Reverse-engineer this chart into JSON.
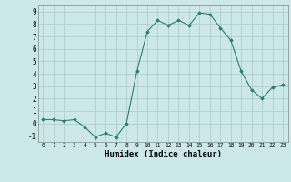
{
  "x": [
    0,
    1,
    2,
    3,
    4,
    5,
    6,
    7,
    8,
    9,
    10,
    11,
    12,
    13,
    14,
    15,
    16,
    17,
    18,
    19,
    20,
    21,
    22,
    23
  ],
  "y": [
    0.3,
    0.3,
    0.2,
    0.3,
    -0.3,
    -1.1,
    -0.8,
    -1.1,
    0.0,
    4.2,
    7.4,
    8.3,
    7.9,
    8.3,
    7.9,
    8.9,
    8.8,
    7.7,
    6.7,
    4.2,
    2.7,
    2.0,
    2.9,
    3.1
  ],
  "xlabel": "Humidex (Indice chaleur)",
  "xlim": [
    -0.5,
    23.5
  ],
  "ylim": [
    -1.5,
    9.5
  ],
  "line_color": "#2e7d72",
  "marker": "D",
  "marker_size": 1.8,
  "bg_color": "#cce8e8",
  "grid_color": "#aacaca",
  "yticks": [
    -1,
    0,
    1,
    2,
    3,
    4,
    5,
    6,
    7,
    8,
    9
  ],
  "xticks": [
    0,
    1,
    2,
    3,
    4,
    5,
    6,
    7,
    8,
    9,
    10,
    11,
    12,
    13,
    14,
    15,
    16,
    17,
    18,
    19,
    20,
    21,
    22,
    23
  ]
}
